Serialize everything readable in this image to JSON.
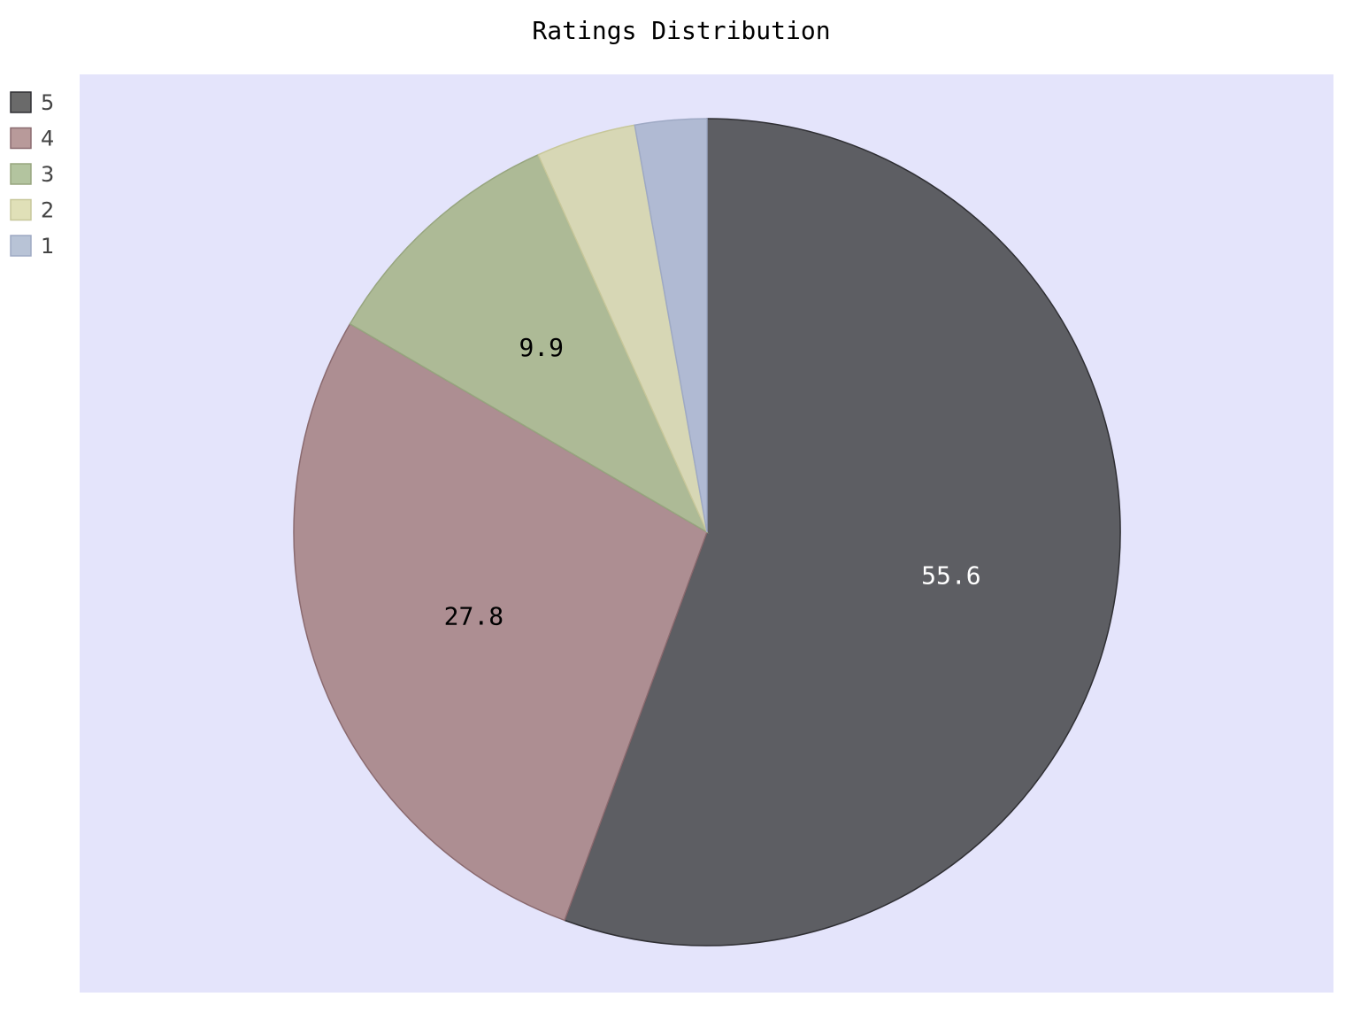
{
  "chart_data": {
    "type": "pie",
    "title": "Ratings Distribution",
    "categories": [
      "5",
      "4",
      "3",
      "2",
      "1"
    ],
    "values": [
      55.6,
      27.8,
      9.9,
      3.9,
      2.8
    ],
    "slice_labels": [
      "55.6",
      "27.8",
      "9.9",
      "",
      ""
    ],
    "colors": [
      "#5d5e63",
      "#ad8e92",
      "#adba96",
      "#d7d7b5",
      "#b0bad3"
    ],
    "edge_colors": [
      "#2f2f33",
      "#8a6a6f",
      "#97a57f",
      "#c7c79a",
      "#9ea9c4"
    ],
    "legend_colors": [
      "#6a6a6a",
      "#b89a9a",
      "#b3c49f",
      "#e0e0b8",
      "#b8c3d6"
    ],
    "label_colors": [
      "#ffffff",
      "#000000",
      "#000000",
      "#000000",
      "#000000"
    ],
    "background": "#e4e4fb",
    "start_angle": "top",
    "direction": "clockwise",
    "legend": "top-left"
  }
}
